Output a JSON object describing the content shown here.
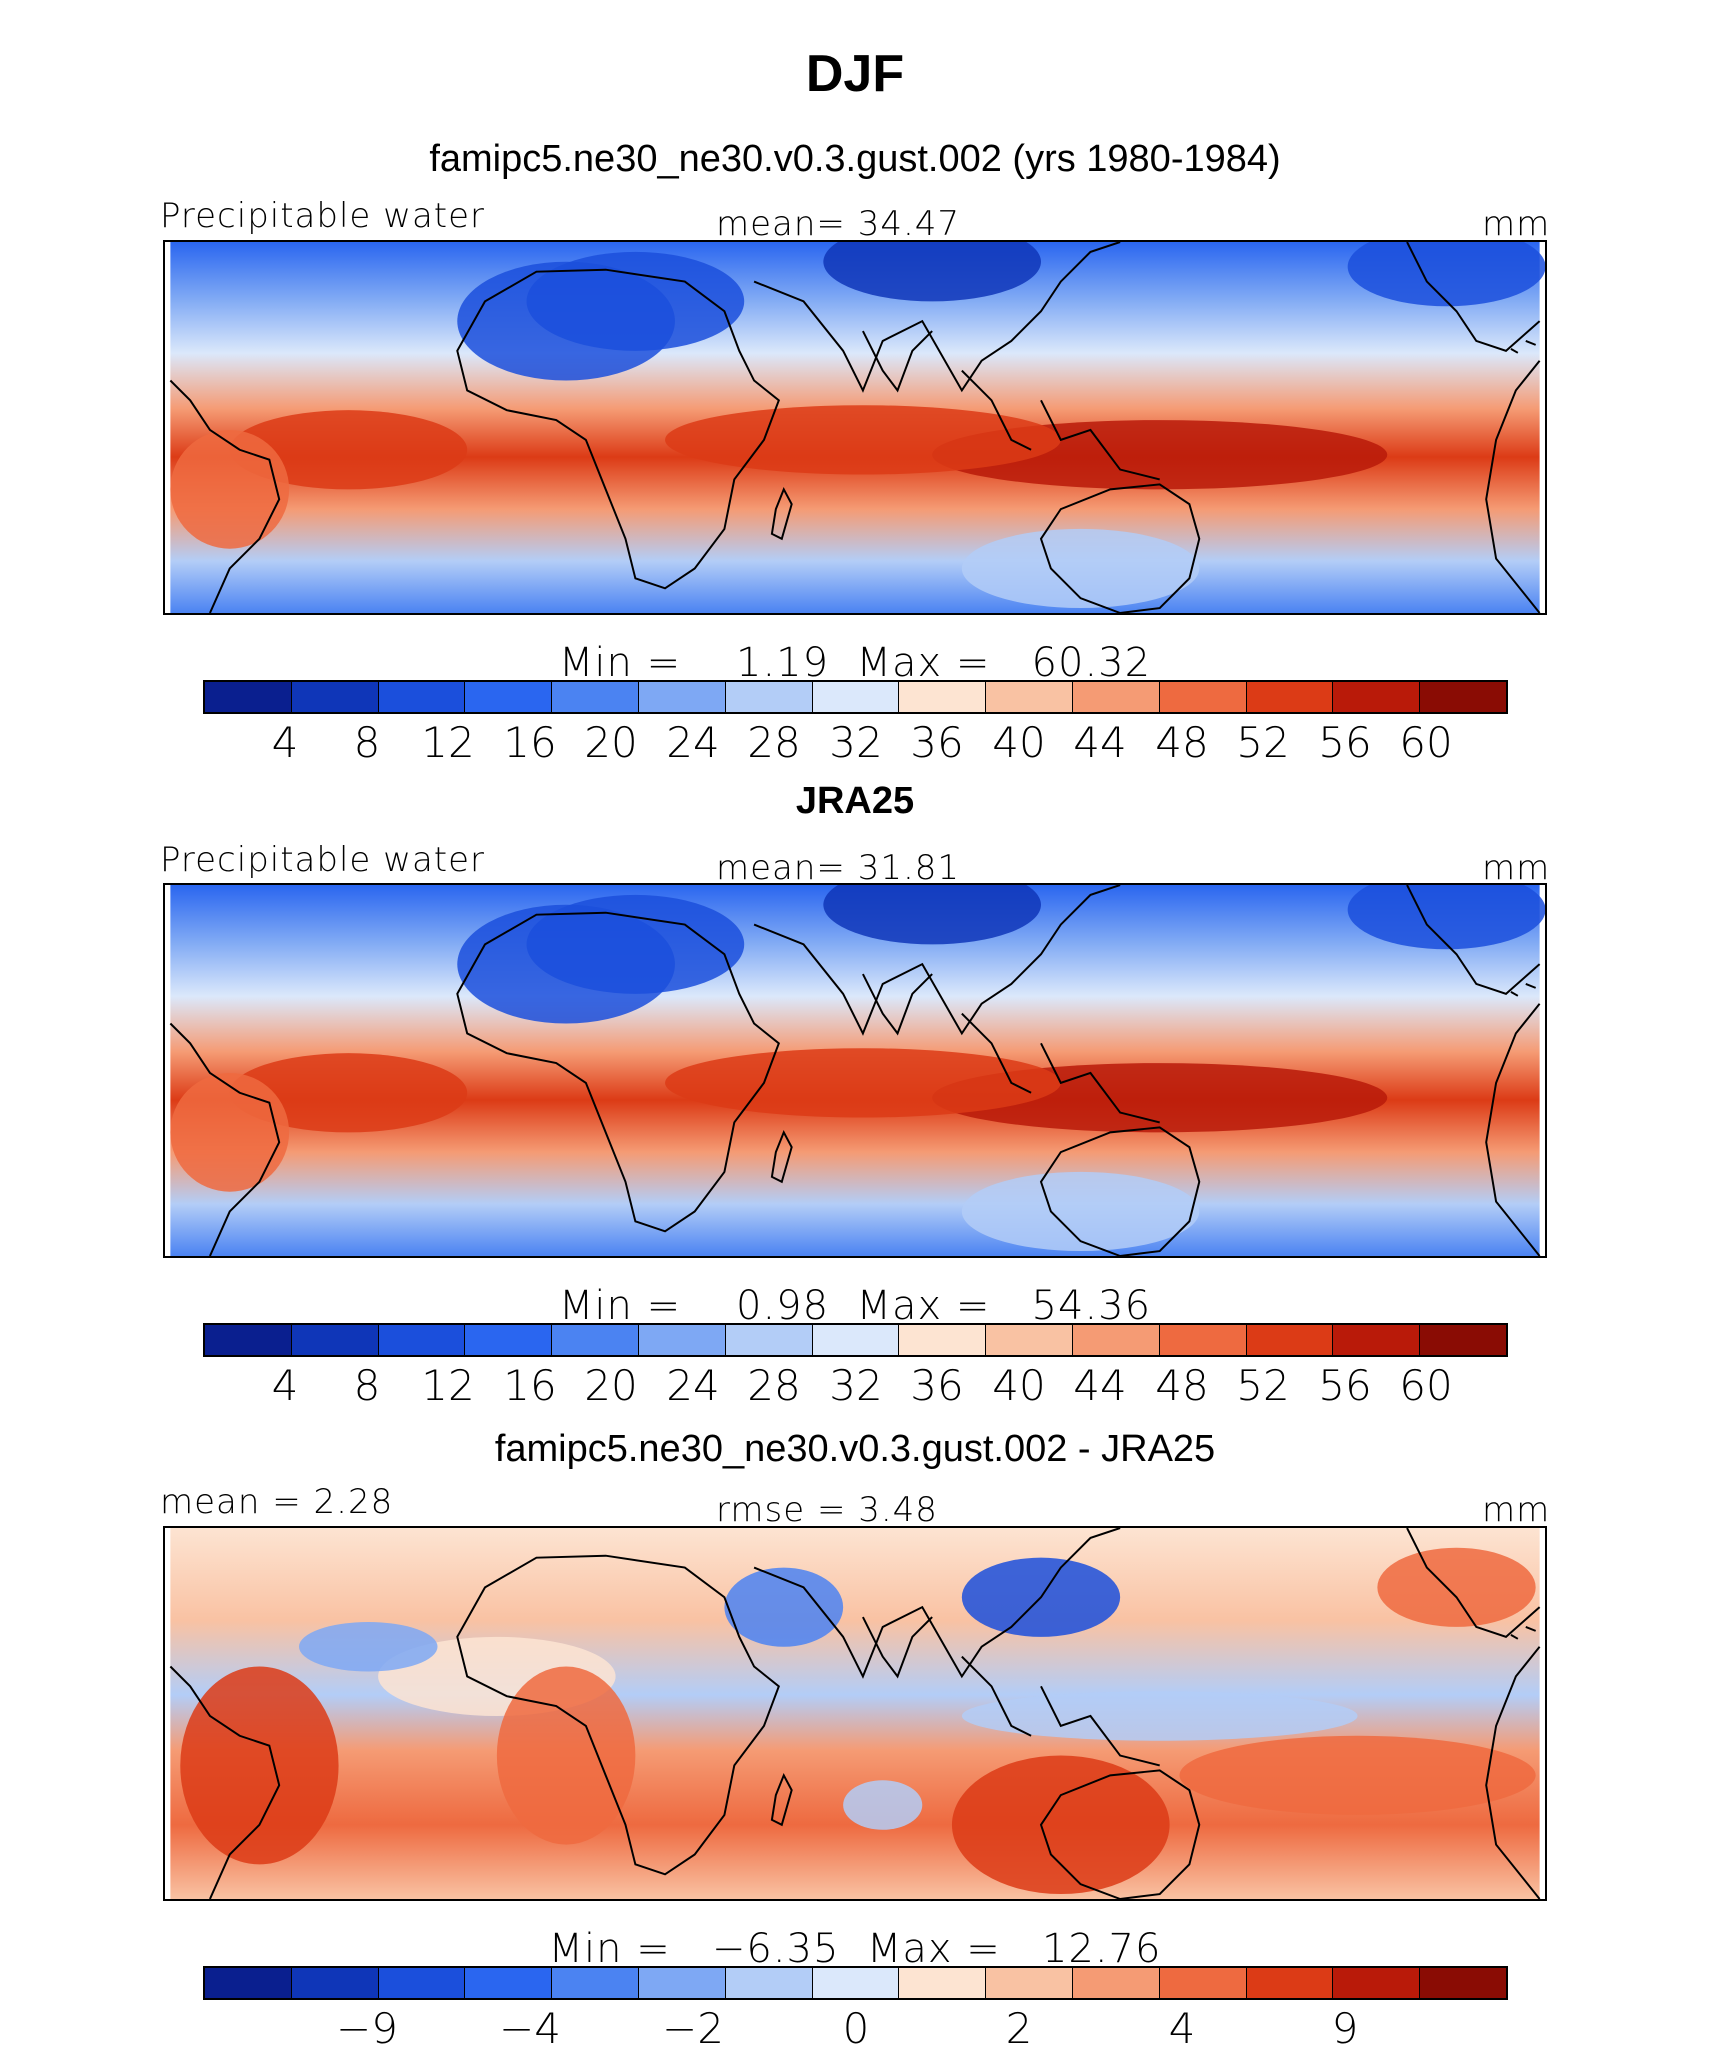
{
  "title": "DJF",
  "chart_data": [
    {
      "type": "heatmap",
      "title": "famipc5.ne30_ne30.v0.3.gust.002 (yrs 1980-1984)",
      "left_label": "Precipitable water",
      "center_label": "mean=  34.47",
      "right_label": "mm",
      "min_max": "Min =    1.19  Max =   60.32",
      "levels": [
        "4",
        "8",
        "12",
        "16",
        "20",
        "24",
        "28",
        "32",
        "36",
        "40",
        "44",
        "48",
        "52",
        "56",
        "60"
      ],
      "colors": [
        "#0a1f8f",
        "#0f36b8",
        "#1b4fdc",
        "#2a66f0",
        "#4b83f2",
        "#7ea8f4",
        "#b3cdf7",
        "#dbe8fb",
        "#fde4d2",
        "#f9c2a3",
        "#f59b74",
        "#ee6a40",
        "#dc3b16",
        "#b91a09",
        "#8a0c04"
      ],
      "value_range": [
        1.19,
        60.32
      ],
      "mean": 34.47
    },
    {
      "type": "heatmap",
      "title": "JRA25",
      "left_label": "Precipitable water",
      "center_label": "mean=  31.81",
      "right_label": "mm",
      "min_max": "Min =    0.98  Max =   54.36",
      "levels": [
        "4",
        "8",
        "12",
        "16",
        "20",
        "24",
        "28",
        "32",
        "36",
        "40",
        "44",
        "48",
        "52",
        "56",
        "60"
      ],
      "colors": [
        "#0a1f8f",
        "#0f36b8",
        "#1b4fdc",
        "#2a66f0",
        "#4b83f2",
        "#7ea8f4",
        "#b3cdf7",
        "#dbe8fb",
        "#fde4d2",
        "#f9c2a3",
        "#f59b74",
        "#ee6a40",
        "#dc3b16",
        "#b91a09",
        "#8a0c04"
      ],
      "value_range": [
        0.98,
        54.36
      ],
      "mean": 31.81
    },
    {
      "type": "heatmap",
      "title": "famipc5.ne30_ne30.v0.3.gust.002 - JRA25",
      "left_label": "mean =   2.28",
      "center_label": "rmse =    3.48",
      "right_label": "mm",
      "min_max": "Min =   −6.35  Max =   12.76",
      "levels": [
        "−9",
        "−4",
        "−2",
        "0",
        "2",
        "4",
        "9"
      ],
      "colors": [
        "#0a1f8f",
        "#0f36b8",
        "#1b4fdc",
        "#2a66f0",
        "#4b83f2",
        "#7ea8f4",
        "#b3cdf7",
        "#dbe8fb",
        "#fde4d2",
        "#f9c2a3",
        "#f59b74",
        "#ee6a40",
        "#dc3b16",
        "#b91a09",
        "#8a0c04"
      ],
      "value_range": [
        -6.35,
        12.76
      ],
      "mean": 2.28,
      "rmse": 3.48
    }
  ]
}
